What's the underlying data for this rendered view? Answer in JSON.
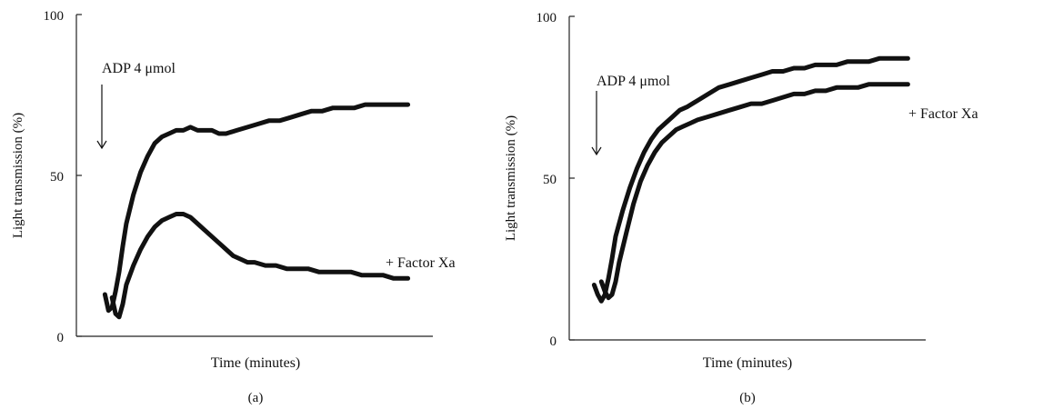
{
  "chart_data": [
    {
      "type": "line",
      "panel_label": "(a)",
      "xlabel": "Time (minutes)",
      "ylabel": "Light transmission (%)",
      "ylim": [
        0,
        100
      ],
      "yticks": [
        0,
        50,
        100
      ],
      "xlim": [
        0,
        100
      ],
      "show_xticks": false,
      "grid": false,
      "annotations": [
        {
          "text": "ADP 4 μmol",
          "kind": "arrow-label",
          "x": 9,
          "y": 57
        },
        {
          "text": "+ Factor Xa",
          "kind": "series-label",
          "series": 1
        }
      ],
      "series": [
        {
          "name": "",
          "x": [
            8,
            9,
            10,
            11,
            12,
            13,
            14,
            16,
            18,
            20,
            22,
            24,
            26,
            28,
            30,
            32,
            34,
            36,
            38,
            40,
            42,
            45,
            48,
            51,
            54,
            57,
            60,
            63,
            66,
            69,
            72,
            75,
            78,
            81,
            84,
            87,
            90,
            93
          ],
          "y": [
            13,
            8,
            9,
            14,
            20,
            28,
            35,
            44,
            51,
            56,
            60,
            62,
            63,
            64,
            64,
            65,
            64,
            64,
            64,
            63,
            63,
            64,
            65,
            66,
            67,
            67,
            68,
            69,
            70,
            70,
            71,
            71,
            71,
            72,
            72,
            72,
            72,
            72
          ]
        },
        {
          "name": "",
          "x": [
            10,
            11,
            12,
            13,
            14,
            16,
            18,
            20,
            22,
            24,
            26,
            28,
            30,
            32,
            34,
            36,
            38,
            40,
            42,
            44,
            46,
            48,
            50,
            53,
            56,
            59,
            62,
            65,
            68,
            71,
            74,
            77,
            80,
            83,
            86,
            89,
            91,
            93
          ],
          "y": [
            12,
            7,
            6,
            10,
            16,
            22,
            27,
            31,
            34,
            36,
            37,
            38,
            38,
            37,
            35,
            33,
            31,
            29,
            27,
            25,
            24,
            23,
            23,
            22,
            22,
            21,
            21,
            21,
            20,
            20,
            20,
            20,
            19,
            19,
            19,
            18,
            18,
            18
          ]
        }
      ]
    },
    {
      "type": "line",
      "panel_label": "(b)",
      "xlabel": "Time (minutes)",
      "ylabel": "Light transmission (%)",
      "ylim": [
        0,
        100
      ],
      "yticks": [
        0,
        50,
        100
      ],
      "xlim": [
        0,
        100
      ],
      "show_xticks": false,
      "grid": false,
      "annotations": [
        {
          "text": "ADP 4 μmol",
          "kind": "arrow-label",
          "x": 9,
          "y": 57
        },
        {
          "text": "+ Factor Xa",
          "kind": "series-label",
          "series": 1
        }
      ],
      "series": [
        {
          "name": "",
          "x": [
            7,
            8,
            9,
            10,
            11,
            12,
            13,
            15,
            17,
            19,
            21,
            23,
            25,
            27,
            29,
            31,
            33,
            36,
            39,
            42,
            45,
            48,
            51,
            54,
            57,
            60,
            63,
            66,
            69,
            72,
            75,
            78,
            81,
            84,
            87,
            90,
            93,
            95
          ],
          "y": [
            17,
            14,
            12,
            14,
            19,
            25,
            32,
            40,
            47,
            53,
            58,
            62,
            65,
            67,
            69,
            71,
            72,
            74,
            76,
            78,
            79,
            80,
            81,
            82,
            83,
            83,
            84,
            84,
            85,
            85,
            85,
            86,
            86,
            86,
            87,
            87,
            87,
            87
          ]
        },
        {
          "name": "",
          "x": [
            9,
            10,
            11,
            12,
            13,
            14,
            16,
            18,
            20,
            22,
            24,
            26,
            28,
            30,
            32,
            34,
            36,
            39,
            42,
            45,
            48,
            51,
            54,
            57,
            60,
            63,
            66,
            69,
            72,
            75,
            78,
            81,
            84,
            87,
            90,
            93,
            95
          ],
          "y": [
            18,
            15,
            13,
            14,
            18,
            24,
            33,
            42,
            49,
            54,
            58,
            61,
            63,
            65,
            66,
            67,
            68,
            69,
            70,
            71,
            72,
            73,
            73,
            74,
            75,
            76,
            76,
            77,
            77,
            78,
            78,
            78,
            79,
            79,
            79,
            79,
            79
          ]
        }
      ]
    }
  ]
}
